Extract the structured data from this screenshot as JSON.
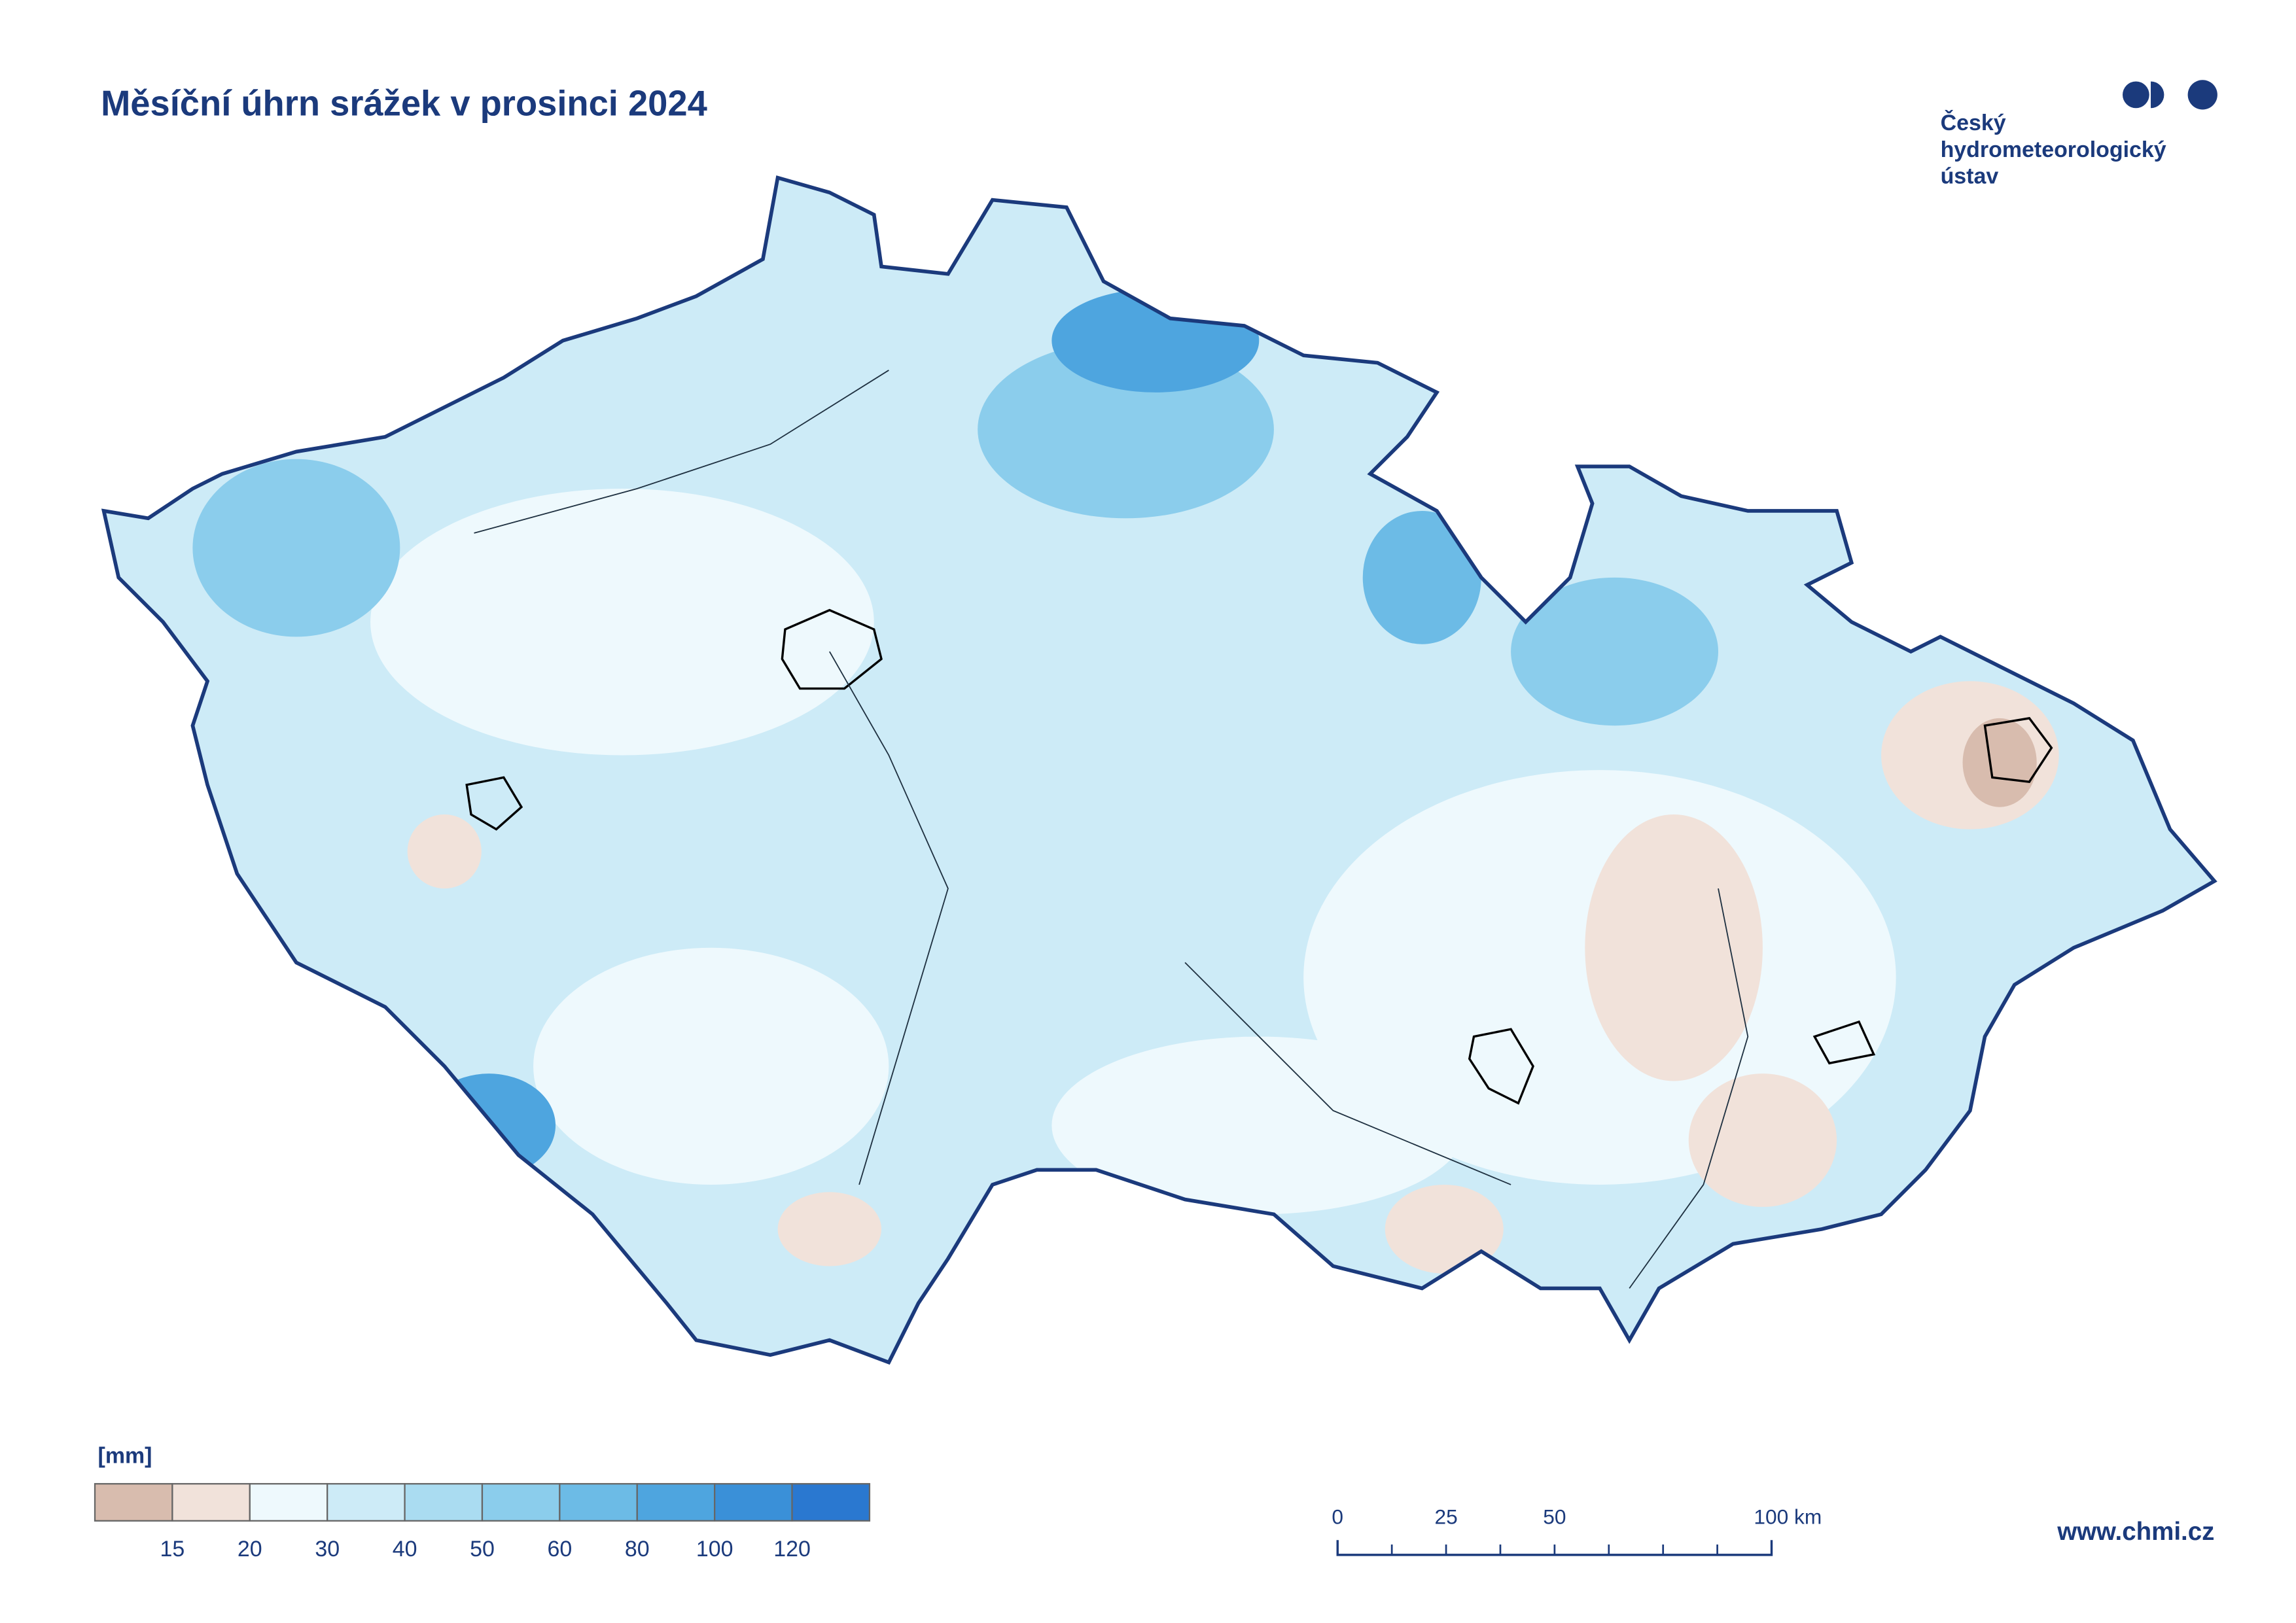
{
  "title": "Měsíční úhrn srážek v prosinci 2024",
  "logo": {
    "lines": [
      "Český",
      "hydrometeorologický",
      "ústav"
    ]
  },
  "legend": {
    "unit": "[mm]",
    "breaks": [
      15,
      20,
      30,
      40,
      50,
      60,
      80,
      100,
      120
    ],
    "colors": [
      "#d8bcae",
      "#f1e2da",
      "#eef9fd",
      "#cdebf7",
      "#aadcf1",
      "#8bcdec",
      "#6cbbe6",
      "#4ea5df",
      "#3a90d8",
      "#2a78d0"
    ]
  },
  "scale_bar": {
    "labels": [
      "0",
      "25",
      "50",
      "100 km"
    ]
  },
  "footer": {
    "url": "www.chmi.cz"
  }
}
